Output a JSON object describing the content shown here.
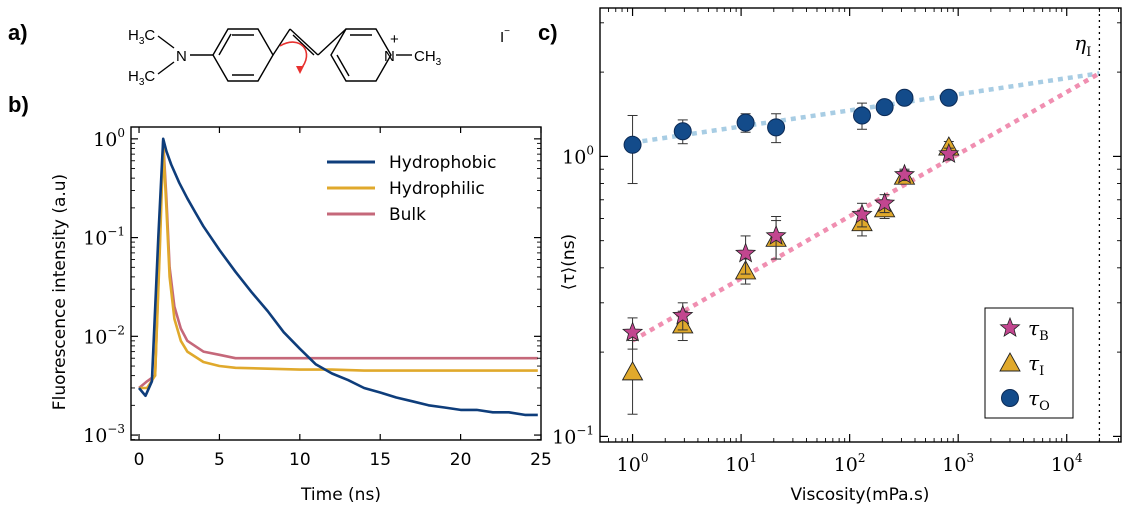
{
  "panels": {
    "a": {
      "label": "a)"
    },
    "b": {
      "label": "b)"
    },
    "c": {
      "label": "c)"
    }
  },
  "molecule": {
    "methyl_top": "H",
    "methyl_top_sub": "3",
    "methyl_top_c": "C",
    "methyl_bottom": "H",
    "methyl_bottom_sub": "3",
    "methyl_bottom_c": "C",
    "nitrogen_left": "N",
    "nitrogen_right": "N",
    "plus": "+",
    "right_methyl": "CH",
    "right_methyl_sub": "3",
    "counterion": "I",
    "counterion_charge": "−",
    "rotation_arrow_color": "#e8312f"
  },
  "chart_data": [
    {
      "id": "b",
      "type": "line",
      "xlabel": "Time (ns)",
      "ylabel": "Fluorescence intensity (a.u)",
      "xlim": [
        -0.5,
        25
      ],
      "ylim_log10": [
        -3.05,
        0.12
      ],
      "yscale": "log",
      "x_ticks": [
        0,
        5,
        10,
        15,
        20,
        25
      ],
      "y_ticks": [
        {
          "base": "10",
          "exp": "0"
        },
        {
          "base": "10",
          "exp": "−1"
        },
        {
          "base": "10",
          "exp": "−2"
        },
        {
          "base": "10",
          "exp": "−3"
        }
      ],
      "y_tick_values_log10": [
        0,
        -1,
        -2,
        -3
      ],
      "legend_placement": "top-right",
      "series": [
        {
          "name": "Hydrophobic",
          "color": "#0e3d7b",
          "x": [
            0.0,
            0.4,
            0.8,
            1.2,
            1.5,
            1.7,
            2.0,
            2.5,
            3.0,
            3.5,
            4.0,
            5.0,
            6.0,
            7.0,
            8.0,
            9.0,
            10.0,
            11.0,
            12.0,
            13.0,
            14.0,
            15.0,
            16.0,
            17.0,
            18.0,
            19.0,
            20.0,
            21.0,
            22.0,
            23.0,
            24.0,
            24.8
          ],
          "y": [
            0.003,
            0.0025,
            0.0035,
            0.1,
            1.0,
            0.75,
            0.55,
            0.36,
            0.25,
            0.18,
            0.13,
            0.075,
            0.045,
            0.028,
            0.018,
            0.011,
            0.0075,
            0.0052,
            0.0042,
            0.0036,
            0.003,
            0.0027,
            0.0024,
            0.0022,
            0.002,
            0.0019,
            0.0018,
            0.0018,
            0.0017,
            0.0017,
            0.0016,
            0.0016
          ]
        },
        {
          "name": "Hydrophilic",
          "color": "#e0a92c",
          "x": [
            0.0,
            0.5,
            1.0,
            1.3,
            1.5,
            1.7,
            1.9,
            2.2,
            2.6,
            3.0,
            4.0,
            5.0,
            6.0,
            8.0,
            10.0,
            12.0,
            14.0,
            16.0,
            18.0,
            20.0,
            22.0,
            24.0,
            24.8
          ],
          "y": [
            0.003,
            0.003,
            0.004,
            0.08,
            0.85,
            0.2,
            0.04,
            0.015,
            0.009,
            0.007,
            0.0055,
            0.005,
            0.0048,
            0.0047,
            0.0046,
            0.0046,
            0.0045,
            0.0045,
            0.0045,
            0.0045,
            0.0045,
            0.0045,
            0.0045
          ]
        },
        {
          "name": "Bulk",
          "color": "#c5687a",
          "x": [
            0.0,
            0.5,
            1.0,
            1.3,
            1.5,
            1.7,
            1.9,
            2.2,
            2.6,
            3.0,
            4.0,
            5.0,
            6.0,
            8.0,
            10.0,
            12.0,
            14.0,
            16.0,
            18.0,
            20.0,
            22.0,
            24.0,
            24.8
          ],
          "y": [
            0.003,
            0.0035,
            0.004,
            0.1,
            0.95,
            0.25,
            0.05,
            0.02,
            0.012,
            0.009,
            0.007,
            0.0065,
            0.006,
            0.006,
            0.006,
            0.006,
            0.006,
            0.006,
            0.006,
            0.006,
            0.006,
            0.006,
            0.006
          ]
        }
      ]
    },
    {
      "id": "c",
      "type": "scatter",
      "xlabel": "Viscosity(mPa.s)",
      "ylabel": "⟨τ⟩(ns)",
      "xscale": "log",
      "yscale": "log",
      "xlim_log10": [
        -0.3,
        4.5
      ],
      "ylim_log10": [
        -1.02,
        0.53
      ],
      "x_ticks": [
        {
          "base": "10",
          "exp": "0"
        },
        {
          "base": "10",
          "exp": "1"
        },
        {
          "base": "10",
          "exp": "2"
        },
        {
          "base": "10",
          "exp": "3"
        },
        {
          "base": "10",
          "exp": "4"
        }
      ],
      "x_tick_values_log10": [
        0,
        1,
        2,
        3,
        4
      ],
      "y_ticks": [
        {
          "base": "10",
          "exp": "0"
        },
        {
          "base": "10",
          "exp": "−1"
        }
      ],
      "y_tick_values_log10": [
        0,
        -1
      ],
      "vline_label": "η",
      "vline_label_sub": "I",
      "vline_x": 20000,
      "legend_placement": "bottom-right",
      "series": [
        {
          "name": "τ",
          "sub": "B",
          "marker": "star",
          "color": "#c2468f",
          "x": [
            1,
            2.9,
            11,
            21,
            130,
            210,
            320,
            820
          ],
          "y": [
            0.235,
            0.27,
            0.45,
            0.52,
            0.62,
            0.68,
            0.86,
            1.02
          ],
          "err": [
            0.03,
            0.03,
            0.07,
            0.09,
            0.06,
            0.05,
            0.04,
            0.05
          ]
        },
        {
          "name": "τ",
          "sub": "I",
          "marker": "triangle",
          "color": "#e0a92c",
          "x": [
            1,
            2.9,
            11,
            21,
            130,
            210,
            320,
            820
          ],
          "y": [
            0.17,
            0.25,
            0.39,
            0.51,
            0.58,
            0.65,
            0.85,
            1.08
          ],
          "err": [
            0.05,
            0.03,
            0.04,
            0.08,
            0.06,
            0.05,
            0.04,
            0.05
          ]
        },
        {
          "name": "τ",
          "sub": "O",
          "marker": "circle",
          "color": "#134b8a",
          "x": [
            1,
            2.9,
            11,
            21,
            130,
            210,
            320,
            820
          ],
          "y": [
            1.1,
            1.23,
            1.32,
            1.27,
            1.4,
            1.5,
            1.62,
            1.62
          ],
          "err": [
            0.3,
            0.12,
            0.1,
            0.15,
            0.15,
            0.06,
            0.05,
            0.05
          ]
        }
      ],
      "fits": [
        {
          "color": "#a8cde4",
          "x": [
            1,
            20000
          ],
          "y": [
            1.12,
            1.98
          ]
        },
        {
          "color": "#f08fb1",
          "x": [
            1,
            20000
          ],
          "y": [
            0.22,
            1.98
          ]
        }
      ]
    }
  ]
}
